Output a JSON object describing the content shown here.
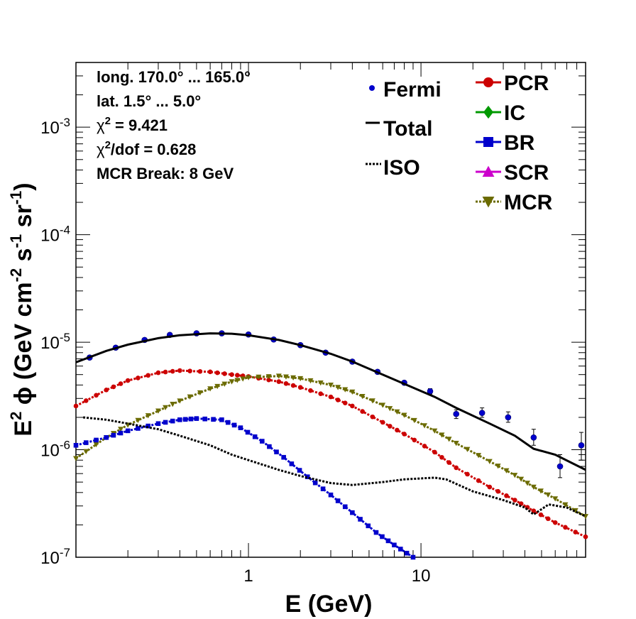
{
  "chart_data": {
    "type": "line",
    "xlabel": "E (GeV)",
    "ylabel": "E² ϕ (GeV cm⁻² s⁻¹ sr⁻¹)",
    "xscale": "log",
    "yscale": "log",
    "xlim": [
      0.1,
      90
    ],
    "ylim": [
      1e-07,
      0.004
    ],
    "x_tick_labels": [
      {
        "value": 1,
        "label": "1"
      },
      {
        "value": 10,
        "label": "10"
      }
    ],
    "y_tick_labels": [
      {
        "value": 1e-07,
        "base": "10",
        "exp": "-7"
      },
      {
        "value": 1e-06,
        "base": "10",
        "exp": "-6"
      },
      {
        "value": 1e-05,
        "base": "10",
        "exp": "-5"
      },
      {
        "value": 0.0001,
        "base": "10",
        "exp": "-4"
      },
      {
        "value": 0.001,
        "base": "10",
        "exp": "-3"
      }
    ],
    "info_lines": [
      {
        "text": "long. 170.0° ... 165.0°"
      },
      {
        "text": "lat. 1.5° ... 5.0°"
      },
      {
        "text": "χ",
        "sup": "2",
        "rest": " = 9.421"
      },
      {
        "text": "χ",
        "sup": "2",
        "rest": "/dof = 0.628"
      },
      {
        "text": "MCR Break:  8 GeV"
      }
    ],
    "legend": {
      "position": "top-right",
      "left_column": [
        {
          "name": "Fermi",
          "style": "point",
          "color": "#0000cc"
        },
        {
          "name": "Total",
          "style": "solid",
          "color": "#000000"
        },
        {
          "name": "ISO",
          "style": "dotted",
          "color": "#000000"
        }
      ],
      "right_column": [
        {
          "name": "PCR",
          "style": "circle",
          "color": "#cc0000"
        },
        {
          "name": "IC",
          "style": "diamond",
          "color": "#009900"
        },
        {
          "name": "BR",
          "style": "square",
          "color": "#0000cc"
        },
        {
          "name": "SCR",
          "style": "triangle-up",
          "color": "#cc00cc"
        },
        {
          "name": "MCR",
          "style": "triangle-down",
          "color": "#6b6b00"
        }
      ]
    },
    "series": [
      {
        "name": "Fermi",
        "style": "points",
        "color": "#0000cc",
        "x": [
          0.12,
          0.17,
          0.25,
          0.35,
          0.5,
          0.7,
          1.0,
          1.4,
          2.0,
          2.8,
          4.0,
          5.6,
          8.0,
          11.3,
          16,
          22.6,
          32,
          45,
          64,
          85
        ],
        "y": [
          7.2e-06,
          8.9e-06,
          1.05e-05,
          1.17e-05,
          1.21e-05,
          1.21e-05,
          1.18e-05,
          1.06e-05,
          9.4e-06,
          8e-06,
          6.6e-06,
          5.3e-06,
          4.2e-06,
          3.5e-06,
          2.15e-06,
          2.2e-06,
          2e-06,
          1.3e-06,
          7e-07,
          1.1e-06
        ],
        "err_low": [
          null,
          null,
          null,
          null,
          null,
          null,
          null,
          null,
          null,
          null,
          null,
          null,
          null,
          3.3e-06,
          1.95e-06,
          2e-06,
          1.8e-06,
          1.1e-06,
          5.5e-07,
          8e-07
        ],
        "err_high": [
          null,
          null,
          null,
          null,
          null,
          null,
          null,
          null,
          null,
          null,
          null,
          null,
          null,
          3.7e-06,
          2.35e-06,
          2.45e-06,
          2.25e-06,
          1.55e-06,
          9e-07,
          1.45e-06
        ]
      },
      {
        "name": "Total",
        "style": "solid",
        "color": "#000000",
        "x": [
          0.1,
          0.15,
          0.2,
          0.3,
          0.4,
          0.6,
          0.8,
          1.0,
          1.5,
          2,
          3,
          4,
          6,
          8,
          12,
          16,
          25,
          35,
          45,
          60,
          90
        ],
        "y": [
          6.5e-06,
          8.3e-06,
          9.5e-06,
          1.09e-05,
          1.16e-05,
          1.21e-05,
          1.2e-05,
          1.16e-05,
          1.05e-05,
          9.4e-06,
          7.8e-06,
          6.6e-06,
          5e-06,
          4.1e-06,
          3.1e-06,
          2.45e-06,
          1.75e-06,
          1.35e-06,
          1.02e-06,
          9e-07,
          6.5e-07
        ]
      },
      {
        "name": "PCR",
        "style": "circle",
        "color": "#cc0000",
        "x": [
          0.1,
          0.15,
          0.2,
          0.3,
          0.4,
          0.6,
          0.8,
          1.0,
          1.5,
          2,
          3,
          4,
          6,
          8,
          12,
          16,
          25,
          35,
          45,
          60,
          90
        ],
        "y": [
          2.55e-06,
          3.6e-06,
          4.4e-06,
          5.2e-06,
          5.45e-06,
          5.3e-06,
          5e-06,
          4.8e-06,
          4.3e-06,
          3.8e-06,
          3.1e-06,
          2.55e-06,
          1.8e-06,
          1.4e-06,
          9.5e-07,
          6.8e-07,
          4.5e-07,
          3.4e-07,
          2.7e-07,
          2.1e-07,
          1.55e-07
        ]
      },
      {
        "name": "MCR",
        "style": "triangle-down",
        "color": "#6b6b00",
        "x": [
          0.1,
          0.15,
          0.2,
          0.3,
          0.4,
          0.6,
          0.8,
          1.0,
          1.5,
          2,
          3,
          4,
          6,
          8,
          12,
          16,
          25,
          35,
          45,
          60,
          90
        ],
        "y": [
          8.3e-07,
          1.3e-06,
          1.7e-06,
          2.3e-06,
          2.85e-06,
          3.7e-06,
          4.3e-06,
          4.7e-06,
          4.85e-06,
          4.6e-06,
          4e-06,
          3.45e-06,
          2.6e-06,
          2.1e-06,
          1.5e-06,
          1.15e-06,
          7.8e-07,
          5.8e-07,
          4.5e-07,
          3.5e-07,
          2.4e-07
        ]
      },
      {
        "name": "BR",
        "style": "square",
        "color": "#0000cc",
        "x": [
          0.1,
          0.15,
          0.2,
          0.3,
          0.4,
          0.5,
          0.7,
          0.9,
          1.2,
          1.6,
          2.2,
          3,
          4,
          5.5,
          7,
          9
        ],
        "y": [
          1.1e-06,
          1.3e-06,
          1.5e-06,
          1.75e-06,
          1.9e-06,
          1.95e-06,
          1.9e-06,
          1.6e-06,
          1.2e-06,
          8.5e-07,
          5.6e-07,
          3.8e-07,
          2.6e-07,
          1.7e-07,
          1.3e-07,
          1e-07
        ]
      },
      {
        "name": "ISO",
        "style": "dotted",
        "color": "#000000",
        "x": [
          0.11,
          0.15,
          0.2,
          0.3,
          0.4,
          0.6,
          0.8,
          1.0,
          1.5,
          2,
          3,
          4,
          6,
          8,
          12,
          14,
          20,
          30,
          40,
          45,
          55,
          70,
          90
        ],
        "y": [
          2e-06,
          1.9e-06,
          1.75e-06,
          1.55e-06,
          1.35e-06,
          1.1e-06,
          9e-07,
          8e-07,
          6.5e-07,
          5.7e-07,
          4.9e-07,
          4.7e-07,
          5e-07,
          5.3e-07,
          5.5e-07,
          5.3e-07,
          4.1e-07,
          3.4e-07,
          2.9e-07,
          2.5e-07,
          3.1e-07,
          2.9e-07,
          2.4e-07
        ]
      }
    ]
  }
}
